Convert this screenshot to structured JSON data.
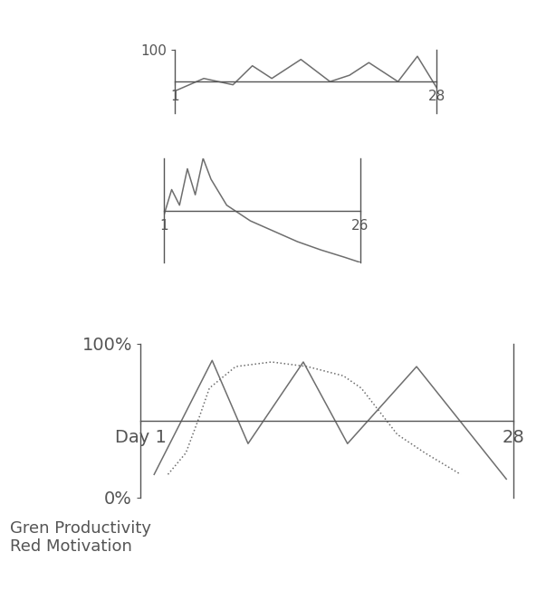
{
  "chart_data": [
    {
      "type": "line",
      "xlim": [
        1,
        28
      ],
      "ylim": [
        0,
        100
      ],
      "xticks": [
        1,
        28
      ],
      "yticks": [
        100
      ],
      "series": [
        {
          "color": "#6e6e6e",
          "line_style": "solid",
          "x": [
            1,
            4,
            7,
            9,
            11,
            14,
            17,
            19,
            21,
            24,
            26,
            28
          ],
          "values": [
            35,
            55,
            45,
            75,
            55,
            85,
            50,
            60,
            80,
            50,
            90,
            40
          ]
        }
      ]
    },
    {
      "type": "line",
      "xlim": [
        1,
        26
      ],
      "ylim": [
        0,
        100
      ],
      "xticks": [
        1,
        26
      ],
      "yticks": [],
      "series": [
        {
          "color": "#6e6e6e",
          "line_style": "solid",
          "x": [
            1,
            2,
            3,
            4,
            5,
            6,
            7,
            9,
            12,
            15,
            18,
            21,
            24,
            26
          ],
          "values": [
            45,
            70,
            55,
            90,
            65,
            100,
            80,
            55,
            40,
            30,
            20,
            12,
            5,
            0
          ]
        }
      ]
    },
    {
      "type": "line",
      "xlim": [
        1,
        28
      ],
      "ylim": [
        0,
        100
      ],
      "xticks": [
        {
          "value": 1,
          "label": "Day 1"
        },
        28
      ],
      "yticks": [
        {
          "value": 0,
          "label": "0%"
        },
        {
          "value": 100,
          "label": "100%"
        }
      ],
      "annotations": [
        "Gren Productivity",
        "Red Motivation"
      ],
      "series": [
        {
          "color": "#6e6e6e",
          "line_style": "solid",
          "x": [
            2,
            6.2,
            8.8,
            12.8,
            16,
            21,
            27.5
          ],
          "values": [
            15,
            89,
            35,
            88,
            35,
            85,
            12
          ]
        },
        {
          "color": "#6e6e6e",
          "line_style": "dotted",
          "x": [
            3,
            4.3,
            5.3,
            6,
            7.9,
            10.5,
            13.1,
            15.7,
            17,
            18.3,
            19.6,
            21.6,
            24.2
          ],
          "values": [
            15,
            29,
            53,
            71,
            85,
            88,
            85,
            79,
            71,
            56,
            41,
            29,
            15
          ]
        }
      ]
    }
  ]
}
